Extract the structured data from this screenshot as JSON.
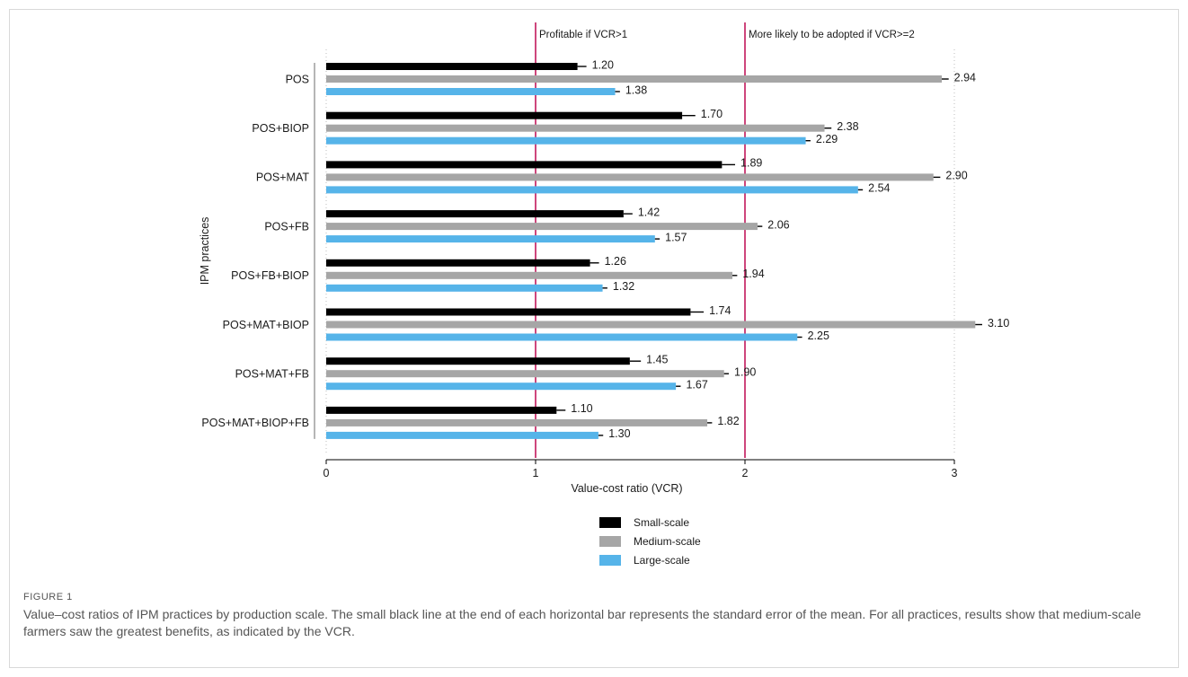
{
  "figure": {
    "label": "FIGURE 1",
    "caption": "Value–cost ratios of IPM practices by production scale. The small black line at the end of each horizontal bar represents the standard error of the mean. For all practices, results show that medium-scale farmers saw the greatest benefits, as indicated by the VCR."
  },
  "chart_data": {
    "type": "bar",
    "orientation": "horizontal",
    "title": "",
    "xlabel": "Value-cost ratio (VCR)",
    "ylabel": "IPM practices",
    "xlim": [
      0,
      3
    ],
    "xticks": [
      0,
      1,
      2,
      3
    ],
    "categories": [
      "POS",
      "POS+BIOP",
      "POS+MAT",
      "POS+FB",
      "POS+FB+BIOP",
      "POS+MAT+BIOP",
      "POS+MAT+FB",
      "POS+MAT+BIOP+FB"
    ],
    "series": [
      {
        "name": "Small-scale",
        "color": "#000000",
        "values": [
          1.2,
          1.7,
          1.89,
          1.42,
          1.26,
          1.74,
          1.45,
          1.1
        ],
        "labels": [
          "1.20",
          "1.70",
          "1.89",
          "1.42",
          "1.26",
          "1.74",
          "1.45",
          "1.10"
        ],
        "errors": [
          0.03,
          0.05,
          0.05,
          0.03,
          0.03,
          0.05,
          0.04,
          0.03
        ]
      },
      {
        "name": "Medium-scale",
        "color": "#a6a6a6",
        "values": [
          2.94,
          2.38,
          2.9,
          2.06,
          1.94,
          3.1,
          1.9,
          1.82
        ],
        "labels": [
          "2.94",
          "2.38",
          "2.90",
          "2.06",
          "1.94",
          "3.10",
          "1.90",
          "1.82"
        ],
        "errors": [
          0.02,
          0.02,
          0.02,
          0.01,
          0.01,
          0.02,
          0.01,
          0.01
        ]
      },
      {
        "name": "Large-scale",
        "color": "#56b4e9",
        "values": [
          1.38,
          2.29,
          2.54,
          1.57,
          1.32,
          2.25,
          1.67,
          1.3
        ],
        "labels": [
          "1.38",
          "2.29",
          "2.54",
          "1.57",
          "1.32",
          "2.25",
          "1.67",
          "1.30"
        ],
        "errors": [
          0.01,
          0.01,
          0.01,
          0.01,
          0.01,
          0.01,
          0.01,
          0.01
        ]
      }
    ],
    "reference_lines": [
      {
        "x": 1,
        "label": "Profitable if VCR>1",
        "color": "#c2185b"
      },
      {
        "x": 2,
        "label": "More likely to be adopted if VCR>=2",
        "color": "#c2185b"
      }
    ],
    "grid": "dotted vertical at x=3",
    "legend_placement": "bottom-center"
  }
}
